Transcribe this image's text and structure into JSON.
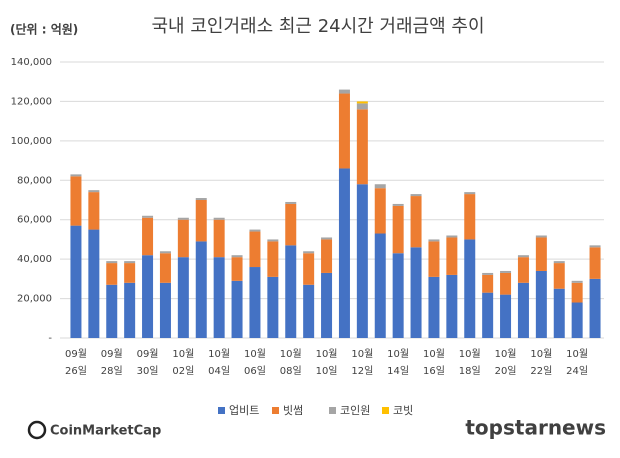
{
  "chart_data": {
    "type": "stacked_bar",
    "title": "국내 코인거래소 최근 24시간 거래금액 추이",
    "unit_label": "(단위 : 억원)",
    "source": "CoinMarketCap",
    "watermark": "topstarnews",
    "categories": [
      "09월 26일",
      null,
      "09월 28일",
      null,
      "09월 30일",
      null,
      "10월 02일",
      null,
      "10월 04일",
      null,
      "10월 06일",
      null,
      "10월 08일",
      null,
      "10월 10일",
      null,
      "10월 12일",
      null,
      "10월 14일",
      null,
      "10월 16일",
      null,
      "10월 18일",
      null,
      "10월 20일",
      null,
      "10월 22일",
      null,
      "10월 24일",
      null
    ],
    "series": [
      {
        "name": "업비트",
        "color": "#4472c4",
        "values": [
          57000,
          55000,
          27000,
          28000,
          42000,
          28000,
          41000,
          49000,
          41000,
          29000,
          36000,
          31000,
          47000,
          27000,
          33000,
          86000,
          78000,
          53000,
          43000,
          46000,
          31000,
          32000,
          50000,
          23000,
          22000,
          28000,
          34000,
          25000,
          18000,
          30000
        ]
      },
      {
        "name": "빗썸",
        "color": "#ed7d31",
        "values": [
          25000,
          19000,
          11000,
          10000,
          19000,
          15000,
          19000,
          21000,
          19000,
          12000,
          18000,
          18000,
          21000,
          16000,
          17000,
          38000,
          38000,
          23000,
          24000,
          26000,
          18000,
          19000,
          23000,
          9000,
          11000,
          13000,
          17000,
          13000,
          10000,
          16000
        ]
      },
      {
        "name": "코인원",
        "color": "#a5a5a5",
        "values": [
          1000,
          1000,
          1000,
          1000,
          1000,
          1000,
          1000,
          1000,
          1000,
          1000,
          1000,
          1000,
          1000,
          1000,
          1000,
          2000,
          3000,
          2000,
          1000,
          1000,
          1000,
          1000,
          1000,
          1000,
          1000,
          1000,
          1000,
          1000,
          1000,
          1000
        ]
      },
      {
        "name": "코빗",
        "color": "#ffc000",
        "values": [
          0,
          0,
          0,
          0,
          0,
          0,
          0,
          0,
          0,
          0,
          0,
          0,
          0,
          0,
          0,
          0,
          1000,
          0,
          0,
          0,
          0,
          0,
          0,
          0,
          0,
          0,
          0,
          0,
          0,
          0
        ]
      }
    ],
    "ylim": [
      0,
      140000
    ],
    "yticks": [
      {
        "value": 0,
        "label": "-"
      },
      {
        "value": 20000,
        "label": "20,000"
      },
      {
        "value": 40000,
        "label": "40,000"
      },
      {
        "value": 60000,
        "label": "60,000"
      },
      {
        "value": 80000,
        "label": "80,000"
      },
      {
        "value": 100000,
        "label": "100,000"
      },
      {
        "value": 120000,
        "label": "120,000"
      },
      {
        "value": 140000,
        "label": "140,000"
      }
    ],
    "grid": true,
    "legend": "bottom"
  }
}
